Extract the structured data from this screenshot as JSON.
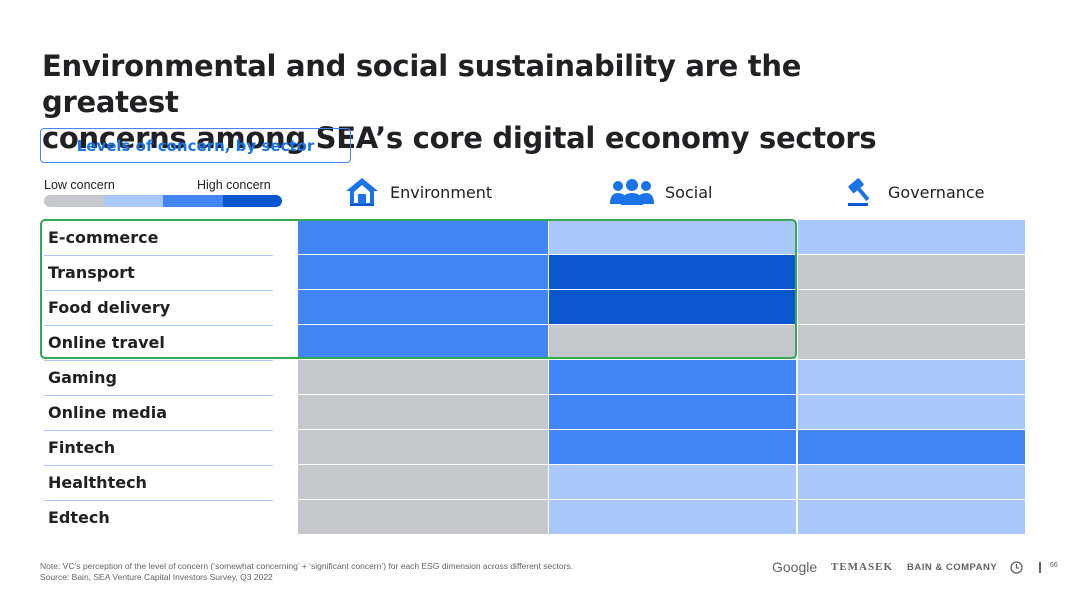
{
  "title_line1": "Environmental and social sustainability are the greatest",
  "title_line2": "concerns among SEA’s core digital economy sectors",
  "subtitle": "Levels of concern, by sector",
  "legend": {
    "low": "Low concern",
    "high": "High concern",
    "colors": [
      "#c4c7cc",
      "#a8c7fa",
      "#4285f4",
      "#0b57d0"
    ]
  },
  "chart_data": {
    "type": "heatmap",
    "title": "Levels of concern, by sector",
    "columns": [
      "Environment",
      "Social",
      "Governance"
    ],
    "rows": [
      "E-commerce",
      "Transport",
      "Food delivery",
      "Online travel",
      "Gaming",
      "Online media",
      "Fintech",
      "Healthtech",
      "Edtech"
    ],
    "scale": [
      "Low concern",
      "",
      "",
      "High concern"
    ],
    "levels": [
      [
        3,
        2,
        2
      ],
      [
        3,
        4,
        1
      ],
      [
        3,
        4,
        1
      ],
      [
        3,
        1,
        1
      ],
      [
        1,
        3,
        2
      ],
      [
        1,
        3,
        2
      ],
      [
        1,
        3,
        3
      ],
      [
        1,
        2,
        2
      ],
      [
        1,
        2,
        2
      ]
    ],
    "highlighted_rows": [
      "E-commerce",
      "Transport",
      "Food delivery",
      "Online travel"
    ],
    "highlighted_columns": [
      "Environment",
      "Social"
    ],
    "highlight_color": "#34a853"
  },
  "icons": {
    "environment": "house-icon",
    "social": "people-icon",
    "governance": "gavel-icon"
  },
  "footnote": {
    "note": "Note: VC’s perception of the level of concern (‘somewhat concerning’ + ‘significant concern’) for each ESG dimension across different sectors.",
    "source": "Source: Bain, SEA Venture Capital Investors Survey, Q3 2022"
  },
  "logos": {
    "google": "Google",
    "temasek": "TEMASEK",
    "bain": "BAIN & COMPANY"
  },
  "page_number": "66"
}
